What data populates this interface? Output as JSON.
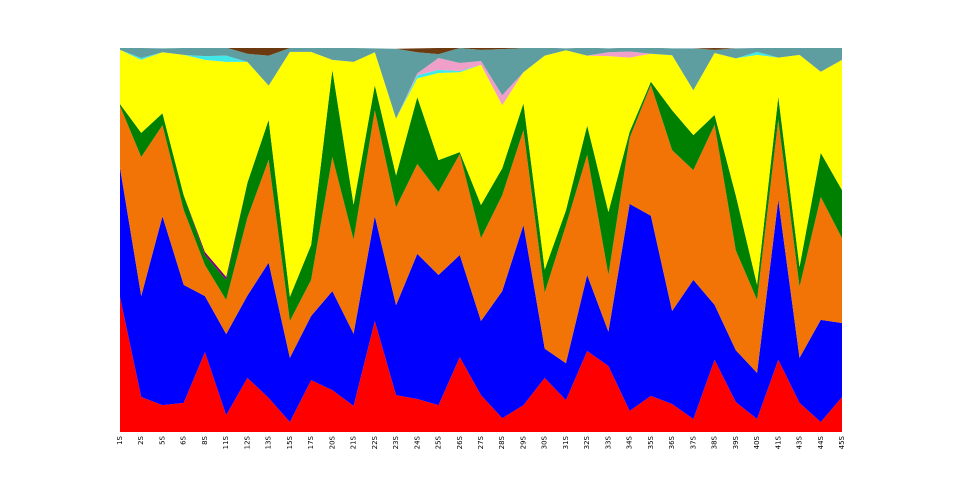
{
  "chart_data": {
    "type": "stacked-area",
    "categories": [
      "1S",
      "2S",
      "5S",
      "6S",
      "8S",
      "11S",
      "12S",
      "13S",
      "15S",
      "17S",
      "20S",
      "21S",
      "22S",
      "23S",
      "24S",
      "25S",
      "26S",
      "27S",
      "28S",
      "29S",
      "30S",
      "31S",
      "32S",
      "33S",
      "34S",
      "35S",
      "36S",
      "37S",
      "38S",
      "39S",
      "40S",
      "41S",
      "43S",
      "44S",
      "45S"
    ],
    "ylim": [
      0,
      100
    ],
    "series": [
      {
        "color": "#ff0000",
        "values": [
          35.2,
          9.1,
          7.0,
          7.6,
          20.8,
          4.4,
          14.1,
          8.9,
          2.6,
          13.5,
          10.9,
          6.8,
          28.9,
          9.6,
          8.6,
          7.0,
          19.5,
          9.6,
          3.6,
          7.0,
          14.1,
          8.3,
          21.1,
          17.2,
          5.5,
          9.4,
          7.3,
          3.4,
          18.8,
          7.8,
          3.4,
          18.8,
          7.6,
          2.6,
          9.1
        ]
      },
      {
        "color": "#0000ff",
        "values": [
          33.6,
          26.3,
          49.2,
          30.7,
          14.6,
          21.1,
          21.4,
          35.2,
          16.7,
          16.7,
          25.8,
          18.8,
          27.3,
          23.4,
          37.8,
          33.9,
          26.6,
          19.3,
          33.1,
          46.9,
          7.6,
          9.6,
          19.8,
          8.9,
          53.9,
          46.9,
          24.2,
          36.2,
          14.3,
          13.5,
          12.0,
          41.7,
          11.7,
          26.6,
          19.3
        ]
      },
      {
        "color": "#f27306",
        "values": [
          16.1,
          36.2,
          23.7,
          19.5,
          8.1,
          8.9,
          20.3,
          26.8,
          9.6,
          9.4,
          34.9,
          24.5,
          27.6,
          25.5,
          23.4,
          21.6,
          26.3,
          21.6,
          25.0,
          24.7,
          14.6,
          35.9,
          31.3,
          14.8,
          17.2,
          34.1,
          41.9,
          28.6,
          46.9,
          26.0,
          19.0,
          20.8,
          18.5,
          32.0,
          22.1
        ]
      },
      {
        "color": "#008000",
        "values": [
          0.5,
          6.3,
          3.1,
          3.9,
          2.6,
          5.2,
          9.1,
          10.4,
          6.3,
          9.1,
          22.7,
          9.1,
          6.5,
          8.3,
          17.4,
          8.3,
          0.5,
          8.6,
          7.0,
          7.0,
          6.0,
          3.9,
          7.6,
          16.4,
          1.6,
          0.8,
          10.4,
          9.1,
          2.6,
          14.3,
          3.9,
          6.0,
          5.2,
          11.5,
          12.5
        ]
      },
      {
        "color": "#800080",
        "values": [
          0,
          0,
          0,
          0,
          0.8,
          0.8,
          0,
          0,
          0,
          0,
          0,
          0,
          0,
          0,
          0,
          0,
          0,
          0,
          0,
          0,
          0,
          0,
          0,
          0,
          0,
          0,
          0,
          0,
          0,
          0,
          0,
          0,
          0,
          0,
          0
        ]
      },
      {
        "color": "#ffff00",
        "values": [
          14.1,
          19.0,
          15.9,
          36.5,
          50.0,
          56.0,
          31.5,
          8.9,
          63.8,
          50.3,
          2.6,
          37.2,
          8.6,
          14.8,
          4.9,
          22.7,
          20.8,
          36.5,
          16.4,
          8.1,
          55.7,
          41.7,
          18.2,
          40.6,
          19.3,
          7.3,
          14.3,
          11.7,
          16.1,
          35.7,
          59.9,
          10.2,
          55.2,
          21.1,
          33.9
        ]
      },
      {
        "color": "#40e8e8",
        "values": [
          0,
          0.5,
          0,
          0,
          1.0,
          1.6,
          0,
          0,
          0,
          0,
          0,
          0,
          0,
          0,
          0.8,
          0.8,
          0.3,
          0,
          0,
          0,
          0,
          0,
          0,
          0,
          0,
          0,
          0,
          0,
          0,
          0,
          0.8,
          0,
          0,
          0,
          0
        ]
      },
      {
        "color": "#f0a0c8",
        "values": [
          0,
          0,
          0,
          0,
          0,
          0,
          0,
          0,
          0,
          0,
          0,
          0,
          0,
          0,
          0.5,
          3.1,
          2.1,
          1.0,
          2.6,
          0,
          0,
          0,
          0,
          1.0,
          1.6,
          0,
          0,
          0,
          0,
          0,
          0,
          0,
          0,
          0,
          0
        ]
      },
      {
        "color": "#5f9ea0",
        "values": [
          0.5,
          2.6,
          1.0,
          1.8,
          2.1,
          2.1,
          2.1,
          7.8,
          1.0,
          1.0,
          3.1,
          3.6,
          1.0,
          18.2,
          5.5,
          1.0,
          3.9,
          2.9,
          12.0,
          6.3,
          2.1,
          0.5,
          2.1,
          1.0,
          1.0,
          1.6,
          1.8,
          10.9,
          0.8,
          2.6,
          1.0,
          2.6,
          1.8,
          6.3,
          3.1
        ]
      },
      {
        "color": "#6b3a10",
        "values": [
          0,
          0,
          0,
          0,
          0,
          0,
          1.6,
          2.1,
          0,
          0,
          0,
          0,
          0,
          0,
          1.0,
          1.6,
          0,
          0.5,
          0.3,
          0,
          0,
          0,
          0,
          0,
          0,
          0,
          0,
          0,
          0.5,
          0,
          0,
          0,
          0,
          0,
          0
        ]
      }
    ]
  }
}
